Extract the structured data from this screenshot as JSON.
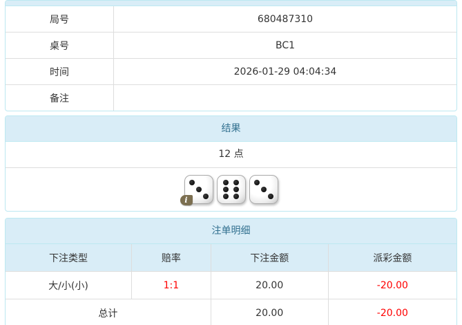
{
  "colors": {
    "panel_border": "#bce8f1",
    "header_bg": "#d9edf7",
    "header_text": "#31708f",
    "cell_border": "#dddddd",
    "body_text": "#333333",
    "negative_text": "#ff0000",
    "info_badge_bg": "#7c6f50"
  },
  "info_table": {
    "rows": [
      {
        "label": "局号",
        "value": "680487310"
      },
      {
        "label": "桌号",
        "value": "BC1"
      },
      {
        "label": "时间",
        "value": "2026-01-29 04:04:34"
      },
      {
        "label": "备注",
        "value": ""
      }
    ]
  },
  "result_panel": {
    "title": "结果",
    "points": "12 点",
    "dice": [
      3,
      6,
      3
    ],
    "info_badge_glyph": "i"
  },
  "bets_panel": {
    "title": "注单明细",
    "columns": {
      "type": "下注类型",
      "odds": "赔率",
      "bet": "下注金额",
      "payout": "派彩金额"
    },
    "rows": [
      {
        "type": "大/小(小)",
        "odds": "1:1",
        "bet": "20.00",
        "payout": "-20.00"
      }
    ],
    "total": {
      "label": "总计",
      "bet": "20.00",
      "payout": "-20.00"
    }
  }
}
